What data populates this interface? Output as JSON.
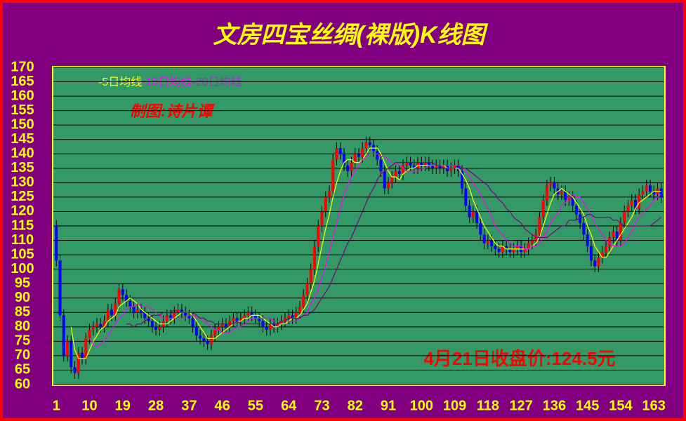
{
  "chart_data": {
    "type": "candlestick",
    "title": "文房四宝丝绸(裸版)K线图",
    "annotations": [
      "制图:诗片谭",
      "4月21日收盘价:124.5元"
    ],
    "up_color": "#ff0000",
    "down_color": "#0000ff",
    "wick_color": "#000000",
    "grid": true,
    "xlim": [
      0,
      166
    ],
    "xticks": [
      1,
      10,
      19,
      28,
      37,
      46,
      55,
      64,
      73,
      82,
      91,
      100,
      109,
      118,
      127,
      136,
      145,
      154,
      163
    ],
    "ylim": [
      60,
      170
    ],
    "yticks": [
      60,
      65,
      70,
      75,
      80,
      85,
      90,
      95,
      100,
      105,
      110,
      115,
      120,
      125,
      130,
      135,
      140,
      145,
      150,
      155,
      160,
      165,
      170
    ],
    "x": [
      1,
      2,
      3,
      4,
      5,
      6,
      7,
      8,
      9,
      10,
      11,
      12,
      13,
      14,
      15,
      16,
      17,
      18,
      19,
      20,
      21,
      22,
      23,
      24,
      25,
      26,
      27,
      28,
      29,
      30,
      31,
      32,
      33,
      34,
      35,
      36,
      37,
      38,
      39,
      40,
      41,
      42,
      43,
      44,
      45,
      46,
      47,
      48,
      49,
      50,
      51,
      52,
      53,
      54,
      55,
      56,
      57,
      58,
      59,
      60,
      61,
      62,
      63,
      64,
      65,
      66,
      67,
      68,
      69,
      70,
      71,
      72,
      73,
      74,
      75,
      76,
      77,
      78,
      79,
      80,
      81,
      82,
      83,
      84,
      85,
      86,
      87,
      88,
      89,
      90,
      91,
      92,
      93,
      94,
      95,
      96,
      97,
      98,
      99,
      100,
      101,
      102,
      103,
      104,
      105,
      106,
      107,
      108,
      109,
      110,
      111,
      112,
      113,
      114,
      115,
      116,
      117,
      118,
      119,
      120,
      121,
      122,
      123,
      124,
      125,
      126,
      127,
      128,
      129,
      130,
      131,
      132,
      133,
      134,
      135,
      136,
      137,
      138,
      139,
      140,
      141,
      142,
      143,
      144,
      145,
      146,
      147,
      148,
      149,
      150,
      151,
      152,
      153,
      154,
      155,
      156,
      157,
      158,
      159,
      160,
      161,
      162,
      163,
      164,
      165
    ],
    "open": [
      115,
      103,
      84,
      70,
      75,
      66,
      64,
      71,
      69,
      76,
      79,
      80,
      81,
      80,
      82,
      86,
      84,
      88,
      93,
      91,
      89,
      87,
      85,
      86,
      85,
      83,
      82,
      80,
      79,
      80,
      82,
      84,
      83,
      85,
      86,
      85,
      84,
      83,
      80,
      77,
      76,
      75,
      74,
      77,
      79,
      80,
      81,
      80,
      82,
      83,
      82,
      83,
      84,
      85,
      84,
      83,
      82,
      80,
      79,
      81,
      80,
      81,
      82,
      83,
      84,
      83,
      85,
      87,
      91,
      95,
      100,
      108,
      115,
      120,
      125,
      127,
      138,
      142,
      140,
      136,
      134,
      137,
      140,
      139,
      142,
      144,
      143,
      141,
      138,
      134,
      128,
      130,
      132,
      134,
      133,
      136,
      137,
      136,
      135,
      137,
      136,
      137,
      136,
      135,
      136,
      135,
      136,
      134,
      135,
      136,
      134,
      128,
      122,
      118,
      120,
      116,
      112,
      109,
      110,
      108,
      107,
      106,
      108,
      107,
      106,
      107,
      108,
      106,
      107,
      109,
      110,
      112,
      118,
      124,
      129,
      130,
      128,
      126,
      127,
      124,
      125,
      122,
      119,
      116,
      112,
      108,
      103,
      101,
      104,
      106,
      108,
      111,
      113,
      110,
      116,
      120,
      122,
      124,
      121,
      126,
      127,
      129,
      127,
      126,
      128
    ],
    "high": [
      117,
      105,
      86,
      77,
      77,
      68,
      73,
      73,
      78,
      81,
      82,
      83,
      83,
      84,
      88,
      88,
      90,
      95,
      95,
      93,
      91,
      89,
      88,
      88,
      87,
      85,
      84,
      82,
      82,
      84,
      86,
      86,
      87,
      88,
      88,
      87,
      86,
      85,
      82,
      79,
      78,
      77,
      79,
      81,
      82,
      83,
      83,
      84,
      85,
      85,
      85,
      86,
      87,
      87,
      86,
      85,
      84,
      82,
      83,
      83,
      83,
      84,
      85,
      86,
      86,
      87,
      89,
      93,
      97,
      102,
      110,
      117,
      122,
      127,
      129,
      140,
      144,
      144,
      142,
      138,
      139,
      142,
      142,
      144,
      146,
      146,
      145,
      143,
      140,
      136,
      132,
      134,
      136,
      136,
      138,
      139,
      139,
      138,
      139,
      139,
      139,
      139,
      138,
      138,
      138,
      138,
      138,
      137,
      138,
      138,
      136,
      130,
      124,
      122,
      122,
      118,
      114,
      112,
      112,
      110,
      109,
      110,
      110,
      109,
      109,
      110,
      110,
      109,
      111,
      112,
      114,
      120,
      126,
      131,
      132,
      132,
      130,
      129,
      129,
      127,
      127,
      124,
      121,
      118,
      114,
      110,
      105,
      106,
      108,
      110,
      113,
      115,
      115,
      118,
      122,
      124,
      126,
      126,
      128,
      129,
      131,
      131,
      129,
      130,
      130
    ],
    "low": [
      101,
      82,
      68,
      68,
      64,
      62,
      62,
      67,
      67,
      74,
      77,
      78,
      78,
      78,
      80,
      82,
      82,
      86,
      89,
      87,
      85,
      83,
      83,
      83,
      81,
      80,
      78,
      77,
      77,
      78,
      80,
      81,
      81,
      83,
      83,
      82,
      81,
      78,
      75,
      74,
      73,
      72,
      72,
      75,
      77,
      78,
      78,
      78,
      80,
      80,
      80,
      81,
      82,
      82,
      81,
      80,
      78,
      77,
      77,
      78,
      78,
      79,
      80,
      81,
      81,
      81,
      83,
      85,
      89,
      93,
      98,
      106,
      113,
      118,
      123,
      125,
      136,
      138,
      134,
      132,
      132,
      135,
      137,
      137,
      140,
      141,
      139,
      136,
      132,
      126,
      126,
      128,
      130,
      131,
      131,
      134,
      134,
      133,
      133,
      134,
      134,
      134,
      133,
      133,
      133,
      133,
      132,
      132,
      133,
      132,
      126,
      120,
      116,
      116,
      114,
      110,
      107,
      107,
      106,
      105,
      104,
      104,
      105,
      104,
      104,
      105,
      104,
      104,
      105,
      107,
      108,
      110,
      116,
      122,
      127,
      126,
      124,
      124,
      122,
      122,
      120,
      117,
      114,
      110,
      106,
      101,
      99,
      99,
      102,
      104,
      106,
      109,
      108,
      108,
      114,
      118,
      120,
      119,
      119,
      124,
      125,
      125,
      124,
      124,
      123
    ],
    "close": [
      103,
      84,
      70,
      75,
      66,
      64,
      71,
      69,
      76,
      79,
      80,
      81,
      80,
      82,
      86,
      84,
      88,
      93,
      91,
      89,
      87,
      85,
      86,
      85,
      83,
      82,
      80,
      79,
      80,
      82,
      84,
      83,
      85,
      86,
      85,
      84,
      83,
      80,
      77,
      76,
      75,
      74,
      77,
      79,
      80,
      81,
      80,
      82,
      83,
      82,
      83,
      84,
      85,
      84,
      83,
      82,
      80,
      79,
      81,
      80,
      81,
      82,
      83,
      84,
      83,
      85,
      87,
      91,
      95,
      100,
      108,
      115,
      120,
      125,
      127,
      138,
      142,
      140,
      136,
      134,
      137,
      140,
      139,
      142,
      144,
      143,
      141,
      138,
      134,
      128,
      130,
      132,
      134,
      133,
      136,
      137,
      136,
      135,
      137,
      136,
      137,
      136,
      135,
      136,
      135,
      136,
      134,
      135,
      136,
      134,
      128,
      122,
      118,
      120,
      116,
      112,
      109,
      110,
      108,
      107,
      106,
      108,
      107,
      106,
      107,
      108,
      106,
      107,
      109,
      110,
      112,
      118,
      124,
      129,
      130,
      128,
      126,
      127,
      124,
      125,
      122,
      119,
      116,
      112,
      108,
      103,
      101,
      104,
      106,
      108,
      111,
      113,
      110,
      116,
      120,
      122,
      124,
      121,
      126,
      127,
      129,
      127,
      126,
      128,
      125
    ],
    "series": [
      {
        "name": "-5日均线",
        "color": "#ffff00",
        "values": [
          null,
          null,
          null,
          null,
          80,
          72,
          69,
          69,
          69,
          72,
          75,
          77,
          79,
          80,
          82,
          83,
          84,
          87,
          88,
          89,
          90,
          89,
          88,
          86,
          85,
          84,
          83,
          82,
          81,
          81,
          81,
          82,
          83,
          84,
          85,
          85,
          85,
          84,
          82,
          80,
          78,
          76,
          76,
          76,
          77,
          78,
          79,
          80,
          81,
          82,
          82,
          83,
          83,
          84,
          84,
          84,
          83,
          82,
          81,
          80,
          80,
          81,
          81,
          82,
          83,
          83,
          84,
          86,
          88,
          92,
          96,
          102,
          108,
          114,
          119,
          125,
          130,
          134,
          137,
          138,
          138,
          137,
          137,
          138,
          140,
          142,
          142,
          142,
          140,
          137,
          134,
          132,
          132,
          131,
          133,
          134,
          135,
          135,
          136,
          136,
          136,
          136,
          136,
          136,
          136,
          136,
          135,
          135,
          135,
          135,
          133,
          131,
          128,
          124,
          121,
          118,
          115,
          113,
          111,
          109,
          108,
          108,
          107,
          107,
          107,
          107,
          107,
          107,
          107,
          108,
          109,
          111,
          115,
          119,
          123,
          126,
          127,
          128,
          127,
          126,
          125,
          123,
          121,
          119,
          115,
          112,
          108,
          106,
          104,
          104,
          106,
          108,
          110,
          112,
          114,
          116,
          118,
          121,
          123,
          124,
          125,
          126,
          127,
          127,
          127
        ]
      },
      {
        "name": "-10日均线",
        "color": "#ff00ff",
        "values": [
          null,
          null,
          null,
          null,
          null,
          null,
          null,
          null,
          null,
          76,
          74,
          73,
          74,
          75,
          77,
          79,
          81,
          83,
          84,
          86,
          87,
          87,
          88,
          87,
          87,
          87,
          86,
          85,
          84,
          83,
          83,
          83,
          83,
          83,
          83,
          83,
          84,
          84,
          83,
          83,
          82,
          81,
          80,
          79,
          79,
          78,
          78,
          78,
          79,
          80,
          80,
          81,
          82,
          83,
          83,
          83,
          83,
          83,
          83,
          82,
          82,
          82,
          82,
          82,
          82,
          82,
          83,
          84,
          85,
          88,
          90,
          93,
          97,
          101,
          106,
          111,
          116,
          121,
          126,
          129,
          132,
          134,
          136,
          138,
          139,
          140,
          140,
          140,
          139,
          139,
          138,
          137,
          137,
          136,
          135,
          134,
          134,
          134,
          134,
          135,
          135,
          136,
          136,
          136,
          136,
          136,
          136,
          136,
          136,
          136,
          135,
          134,
          132,
          130,
          128,
          126,
          123,
          121,
          118,
          115,
          113,
          112,
          110,
          109,
          108,
          108,
          108,
          107,
          107,
          108,
          108,
          109,
          111,
          113,
          116,
          118,
          119,
          122,
          123,
          125,
          126,
          125,
          125,
          123,
          121,
          119,
          116,
          114,
          112,
          110,
          109,
          108,
          108,
          108,
          109,
          111,
          113,
          116,
          118,
          119,
          121,
          122,
          124,
          125,
          126
        ]
      },
      {
        "name": "-20日均线",
        "color": "#800080",
        "values": [
          null,
          null,
          null,
          null,
          null,
          null,
          null,
          null,
          null,
          null,
          null,
          null,
          null,
          null,
          null,
          null,
          null,
          null,
          null,
          81,
          81,
          80,
          81,
          81,
          82,
          83,
          84,
          84,
          84,
          85,
          85,
          85,
          86,
          85,
          85,
          85,
          85,
          85,
          84,
          83,
          83,
          82,
          82,
          81,
          81,
          81,
          81,
          81,
          81,
          82,
          81,
          81,
          81,
          81,
          81,
          81,
          81,
          81,
          81,
          81,
          81,
          82,
          82,
          83,
          83,
          83,
          83,
          84,
          84,
          85,
          86,
          88,
          90,
          92,
          94,
          97,
          100,
          103,
          106,
          109,
          111,
          114,
          117,
          120,
          123,
          126,
          128,
          131,
          133,
          134,
          135,
          136,
          137,
          137,
          137,
          137,
          137,
          137,
          137,
          137,
          137,
          137,
          137,
          136,
          136,
          135,
          135,
          135,
          135,
          136,
          135,
          135,
          134,
          133,
          132,
          131,
          130,
          129,
          127,
          126,
          124,
          123,
          121,
          120,
          118,
          117,
          116,
          114,
          113,
          112,
          111,
          111,
          111,
          111,
          112,
          113,
          114,
          115,
          115,
          117,
          117,
          117,
          118,
          118,
          119,
          119,
          118,
          118,
          118,
          118,
          118,
          117,
          117,
          116,
          115,
          115,
          115,
          115,
          115,
          115,
          115,
          115,
          116,
          117,
          118
        ]
      }
    ]
  }
}
